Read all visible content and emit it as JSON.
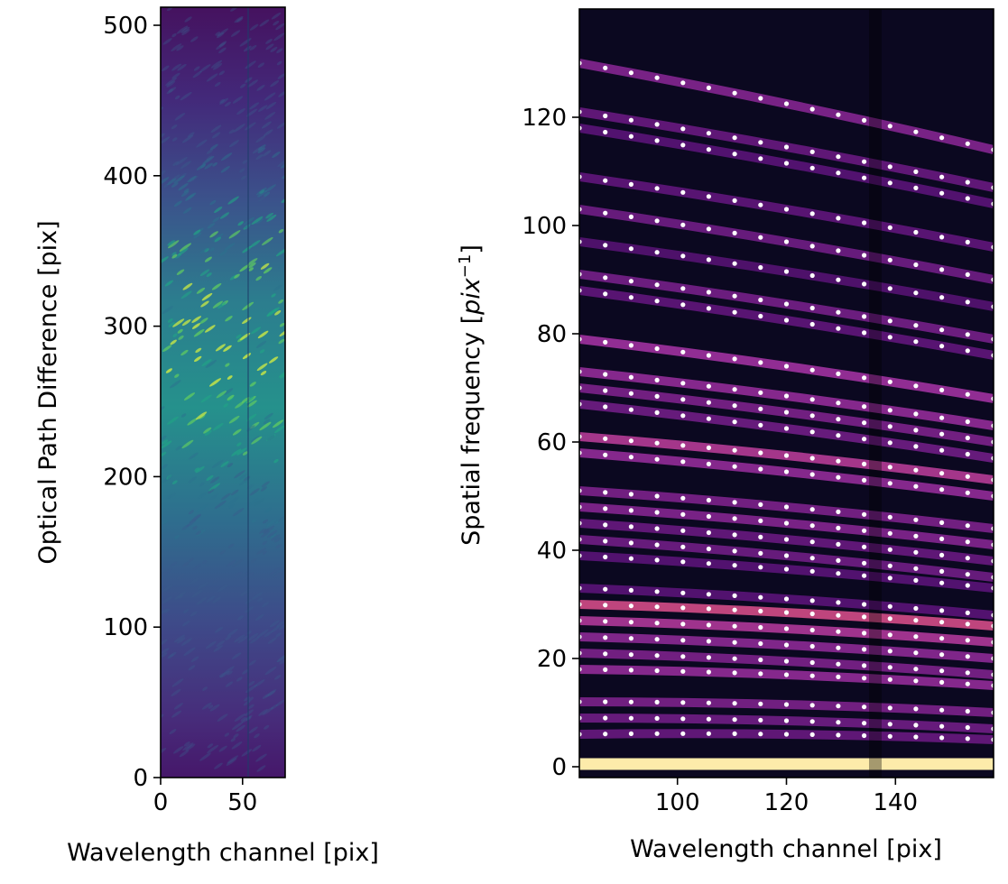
{
  "chart_data": [
    {
      "type": "heatmap",
      "title": "",
      "xlabel": "Wavelength channel [pix]",
      "ylabel": "Optical Path Difference [pix]",
      "xlim": [
        0,
        76
      ],
      "ylim": [
        0,
        512
      ],
      "xticks": [
        0,
        50
      ],
      "xtick_labels": [
        "0",
        "50"
      ],
      "yticks": [
        0,
        100,
        200,
        300,
        400,
        500
      ],
      "ytick_labels": [
        "0",
        "100",
        "200",
        "300",
        "400",
        "500"
      ],
      "colormap": "viridis",
      "grid": false
    },
    {
      "type": "heatmap",
      "title": "",
      "xlabel": "Wavelength channel [pix]",
      "ylabel_prefix": "Spatial frequency [",
      "ylabel_unit": "pix",
      "ylabel_exp": "−1",
      "ylabel_suffix": "]",
      "xlim": [
        82,
        158
      ],
      "ylim": [
        -2,
        140
      ],
      "xticks": [
        100,
        120,
        140
      ],
      "xtick_labels": [
        "100",
        "120",
        "140"
      ],
      "yticks": [
        0,
        20,
        40,
        60,
        80,
        100,
        120
      ],
      "ytick_labels": [
        "0",
        "20",
        "40",
        "60",
        "80",
        "100",
        "120"
      ],
      "colormap": "magma",
      "grid": false,
      "bands": [
        {
          "y0": 130,
          "y1": 114,
          "intensity": 0.45
        },
        {
          "y0": 121,
          "y1": 107,
          "intensity": 0.35
        },
        {
          "y0": 118,
          "y1": 104,
          "intensity": 0.3
        },
        {
          "y0": 109,
          "y1": 96,
          "intensity": 0.32
        },
        {
          "y0": 103,
          "y1": 90,
          "intensity": 0.38
        },
        {
          "y0": 97,
          "y1": 85,
          "intensity": 0.28
        },
        {
          "y0": 91,
          "y1": 79,
          "intensity": 0.4
        },
        {
          "y0": 88,
          "y1": 76,
          "intensity": 0.32
        },
        {
          "y0": 79,
          "y1": 68,
          "intensity": 0.55
        },
        {
          "y0": 73,
          "y1": 63,
          "intensity": 0.5
        },
        {
          "y0": 70,
          "y1": 60,
          "intensity": 0.42
        },
        {
          "y0": 67,
          "y1": 57,
          "intensity": 0.38
        },
        {
          "y0": 61,
          "y1": 53,
          "intensity": 0.62
        },
        {
          "y0": 58,
          "y1": 50,
          "intensity": 0.5
        },
        {
          "y0": 51,
          "y1": 44,
          "intensity": 0.42
        },
        {
          "y0": 48,
          "y1": 41,
          "intensity": 0.45
        },
        {
          "y0": 45,
          "y1": 38,
          "intensity": 0.35
        },
        {
          "y0": 42,
          "y1": 35,
          "intensity": 0.38
        },
        {
          "y0": 39,
          "y1": 33,
          "intensity": 0.3
        },
        {
          "y0": 33,
          "y1": 28,
          "intensity": 0.3
        },
        {
          "y0": 30,
          "y1": 26,
          "intensity": 0.72
        },
        {
          "y0": 27,
          "y1": 23,
          "intensity": 0.6
        },
        {
          "y0": 24,
          "y1": 20,
          "intensity": 0.48
        },
        {
          "y0": 21,
          "y1": 17,
          "intensity": 0.42
        },
        {
          "y0": 18,
          "y1": 15,
          "intensity": 0.5
        },
        {
          "y0": 12,
          "y1": 10,
          "intensity": 0.42
        },
        {
          "y0": 9,
          "y1": 7,
          "intensity": 0.38
        },
        {
          "y0": 6,
          "y1": 5,
          "intensity": 0.35
        },
        {
          "y0": 0.5,
          "y1": 0.5,
          "intensity": 1.0
        }
      ]
    }
  ]
}
